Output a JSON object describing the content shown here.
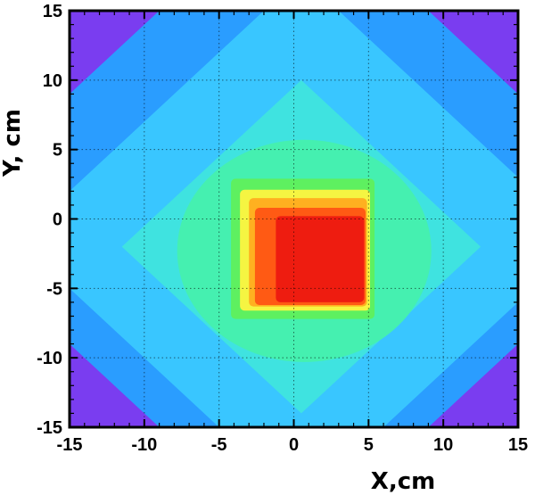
{
  "chart_data": {
    "type": "heatmap",
    "title": "",
    "xlabel": "X,cm",
    "ylabel": "Y, cm",
    "xlim": [
      -15,
      15
    ],
    "ylim": [
      -15,
      15
    ],
    "x_ticks": [
      -15,
      -10,
      -5,
      0,
      5,
      10,
      15
    ],
    "y_ticks": [
      -15,
      -10,
      -5,
      0,
      5,
      10,
      15
    ],
    "x_tick_labels": [
      "-15",
      "-10",
      "-5",
      "0",
      "5",
      "10",
      "15"
    ],
    "y_tick_labels": [
      "-15",
      "-10",
      "-5",
      "0",
      "5",
      "10",
      "15"
    ],
    "grid": true,
    "grid_style": "dotted",
    "colormap": [
      "#8a2be2",
      "#3b3bff",
      "#1e6bff",
      "#2a9dff",
      "#39c6ff",
      "#3fe3e0",
      "#45f0b0",
      "#5ef060",
      "#b8f23a",
      "#f5f542",
      "#ffb020",
      "#ff5a14",
      "#ee1c10"
    ],
    "regions": [
      {
        "level": "background field",
        "shape": "square",
        "x": [
          -15,
          15
        ],
        "y": [
          -15,
          15
        ],
        "color": "#2a9dff"
      },
      {
        "level": "corner",
        "shape": "corner-triangle",
        "corner": "top-left",
        "color": "#7a3df0"
      },
      {
        "level": "corner",
        "shape": "corner-triangle",
        "corner": "top-right",
        "color": "#7a3df0"
      },
      {
        "level": "corner",
        "shape": "corner-triangle",
        "corner": "bottom-left",
        "color": "#7a3df0"
      },
      {
        "level": "corner",
        "shape": "corner-triangle",
        "corner": "bottom-right",
        "color": "#7a3df0"
      },
      {
        "level": "cross arm",
        "shape": "diamond",
        "center": [
          0.5,
          -1.5
        ],
        "half_width": 19,
        "color": "#39c6ff"
      },
      {
        "level": "mid",
        "shape": "diamond",
        "center": [
          0.5,
          -2
        ],
        "half_width": 12,
        "color": "#3fe3e0"
      },
      {
        "level": "mid-high",
        "shape": "ellipse",
        "center": [
          0.7,
          -2.3
        ],
        "radius": [
          8.5,
          8.0
        ],
        "color": "#45f0b0"
      },
      {
        "level": "high",
        "shape": "rect",
        "x": [
          -4.2,
          5.4
        ],
        "y": [
          -7.2,
          2.9
        ],
        "color": "#5ef060"
      },
      {
        "level": "higher",
        "shape": "rect",
        "x": [
          -3.6,
          5.1
        ],
        "y": [
          -6.6,
          2.1
        ],
        "color": "#f5f542"
      },
      {
        "level": "very high",
        "shape": "rect",
        "x": [
          -3.0,
          4.9
        ],
        "y": [
          -6.3,
          1.5
        ],
        "color": "#ffb020"
      },
      {
        "level": "peak",
        "shape": "rect",
        "x": [
          -2.6,
          4.8
        ],
        "y": [
          -6.2,
          0.8
        ],
        "color": "#ff5a14"
      },
      {
        "level": "max",
        "shape": "rect",
        "x": [
          -1.2,
          4.7
        ],
        "y": [
          -6.0,
          0.2
        ],
        "color": "#ee1c10"
      }
    ]
  }
}
